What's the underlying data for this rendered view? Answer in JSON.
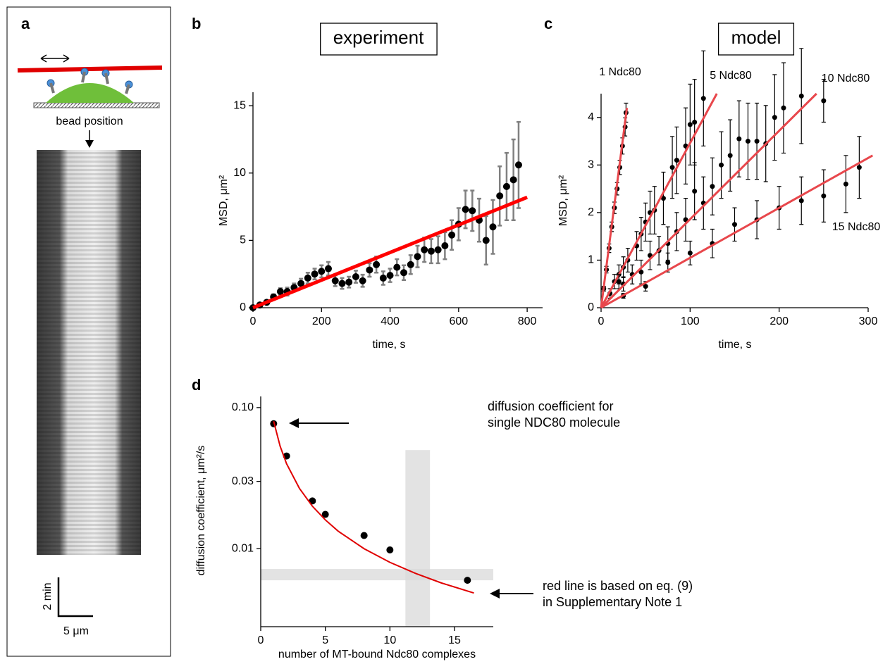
{
  "panel_a": {
    "panel": "a",
    "label": "bead position",
    "time_scale": "2 min",
    "length_scale": "5 μm"
  },
  "chart_data": [
    {
      "type": "scatter",
      "panel": "b",
      "title": "experiment",
      "x_label": "time, s",
      "y_label": "MSD, μm²",
      "xlim": [
        0,
        845
      ],
      "ylim": [
        0,
        16
      ],
      "xticks": [
        0,
        200,
        400,
        600,
        800
      ],
      "yticks": [
        0,
        5,
        10,
        15
      ],
      "series": [
        {
          "type": "scatter",
          "color": "#000000",
          "error_color": "#808080",
          "x": [
            0,
            20,
            40,
            60,
            80,
            100,
            120,
            140,
            160,
            180,
            200,
            220,
            240,
            260,
            280,
            300,
            320,
            340,
            360,
            380,
            400,
            420,
            440,
            460,
            480,
            500,
            520,
            540,
            560,
            580,
            600,
            620,
            640,
            660,
            680,
            700,
            720,
            740,
            760,
            775
          ],
          "values": [
            0,
            0.2,
            0.4,
            0.8,
            1.2,
            1.2,
            1.5,
            1.8,
            2.2,
            2.5,
            2.7,
            2.9,
            2.0,
            1.8,
            1.9,
            2.3,
            2.0,
            2.8,
            3.2,
            2.2,
            2.4,
            3.0,
            2.6,
            3.2,
            3.8,
            4.3,
            4.2,
            4.3,
            4.6,
            5.4,
            6.2,
            7.3,
            7.2,
            6.5,
            5.0,
            6.0,
            8.3,
            9.0,
            9.5,
            10.6
          ],
          "errors": [
            0.05,
            0.1,
            0.15,
            0.2,
            0.25,
            0.3,
            0.3,
            0.35,
            0.4,
            0.4,
            0.45,
            0.5,
            0.4,
            0.4,
            0.4,
            0.45,
            0.45,
            0.5,
            0.6,
            0.5,
            0.5,
            0.6,
            0.55,
            0.7,
            0.8,
            0.9,
            0.9,
            1.0,
            1.0,
            1.1,
            1.2,
            1.4,
            1.5,
            1.6,
            1.8,
            2.0,
            2.2,
            2.5,
            3.0,
            3.2
          ]
        },
        {
          "type": "line",
          "color": "#ff0000",
          "x": [
            0,
            800
          ],
          "values": [
            0,
            8.2
          ]
        }
      ]
    },
    {
      "type": "scatter",
      "panel": "c",
      "title": "model",
      "x_label": "time, s",
      "y_label": "MSD, μm²",
      "xlim": [
        0,
        300
      ],
      "ylim": [
        0,
        4.5
      ],
      "xticks": [
        0,
        100,
        200,
        300
      ],
      "yticks": [
        0,
        1,
        2,
        3,
        4
      ],
      "series": [
        {
          "name": "1 Ndc80",
          "color": "#000000",
          "fit_color": "#e8474c",
          "fit_x": [
            0,
            29
          ],
          "fit_values": [
            0,
            4.2
          ],
          "x": [
            3,
            6,
            9,
            12,
            15,
            18,
            21,
            24,
            27,
            28
          ],
          "values": [
            0.4,
            0.8,
            1.25,
            1.7,
            2.1,
            2.5,
            2.95,
            3.4,
            3.8,
            4.1
          ],
          "errors": [
            0.05,
            0.07,
            0.09,
            0.1,
            0.12,
            0.13,
            0.15,
            0.17,
            0.19,
            0.2
          ]
        },
        {
          "name": "5 Ndc80",
          "color": "#000000",
          "fit_color": "#e8474c",
          "fit_x": [
            0,
            130
          ],
          "fit_values": [
            0,
            4.5
          ],
          "x": [
            10,
            15,
            20,
            25,
            30,
            40,
            45,
            50,
            55,
            60,
            70,
            80,
            85,
            95,
            100,
            105,
            115
          ],
          "values": [
            0.3,
            0.55,
            0.7,
            0.85,
            1.0,
            1.3,
            1.55,
            1.8,
            2.0,
            2.05,
            2.3,
            2.95,
            3.1,
            3.4,
            3.85,
            3.9,
            4.4
          ],
          "errors": [
            0.1,
            0.15,
            0.2,
            0.22,
            0.25,
            0.3,
            0.35,
            0.4,
            0.45,
            0.5,
            0.55,
            0.65,
            0.7,
            0.8,
            0.85,
            0.9,
            1.0
          ]
        },
        {
          "name": "10 Ndc80",
          "color": "#000000",
          "fit_color": "#e8474c",
          "fit_x": [
            0,
            242
          ],
          "fit_values": [
            0,
            4.5
          ],
          "x": [
            20,
            25,
            35,
            45,
            55,
            65,
            75,
            85,
            95,
            105,
            115,
            125,
            135,
            145,
            155,
            165,
            175,
            185,
            195,
            205,
            225,
            250
          ],
          "values": [
            0.55,
            0.5,
            0.7,
            0.75,
            1.1,
            1.2,
            1.35,
            1.6,
            1.85,
            2.45,
            2.2,
            2.55,
            3.0,
            3.2,
            3.55,
            3.5,
            3.5,
            3.45,
            4.0,
            4.2,
            4.45,
            4.35
          ],
          "errors": [
            0.15,
            0.15,
            0.2,
            0.25,
            0.3,
            0.3,
            0.35,
            0.4,
            0.45,
            0.6,
            0.55,
            0.6,
            0.7,
            0.75,
            0.8,
            0.8,
            0.8,
            0.8,
            0.9,
            0.95,
            1.0,
            0.45
          ]
        },
        {
          "name": "15 Ndc80",
          "color": "#000000",
          "fit_color": "#e8474c",
          "fit_x": [
            0,
            305
          ],
          "fit_values": [
            0,
            3.2
          ],
          "x": [
            25,
            50,
            75,
            100,
            125,
            150,
            175,
            200,
            225,
            250,
            275,
            290
          ],
          "values": [
            0.25,
            0.45,
            0.95,
            1.15,
            1.35,
            1.75,
            1.85,
            2.1,
            2.25,
            2.35,
            2.6,
            2.95
          ],
          "errors": [
            0.05,
            0.1,
            0.2,
            0.25,
            0.3,
            0.35,
            0.4,
            0.45,
            0.5,
            0.55,
            0.6,
            0.65
          ]
        }
      ]
    },
    {
      "type": "scatter",
      "panel": "d",
      "x_label": "number of MT-bound Ndc80 complexes",
      "y_label": "diffusion coefficient, μm²/s",
      "log_y": true,
      "xlim": [
        0,
        18
      ],
      "ylim": [
        0.0028,
        0.12
      ],
      "xticks": [
        0,
        5,
        10,
        15
      ],
      "yticks": [
        0.01,
        0.03,
        {
          "value": 0.1,
          "label": "0.10"
        }
      ],
      "shaded_regions": [
        {
          "x": [
            11.2,
            13.1
          ],
          "y": [
            0.0028,
            0.05
          ]
        },
        {
          "x": [
            0,
            18
          ],
          "y": [
            0.00597,
            0.00718
          ]
        }
      ],
      "annotations": [
        {
          "lines": [
            "diffusion coefficient for",
            "single NDC80 molecule"
          ]
        },
        {
          "lines": [
            "red line is based on eq. (9)",
            "in Supplementary Note 1"
          ]
        }
      ],
      "series": [
        {
          "type": "scatter",
          "color": "#000000",
          "x": [
            1,
            2,
            4,
            5,
            8,
            10,
            16
          ],
          "values": [
            0.0769,
            0.0454,
            0.0218,
            0.0175,
            0.0124,
            0.0098,
            0.00597
          ]
        },
        {
          "type": "line",
          "color": "#e00000",
          "x": [
            1,
            1.5,
            2,
            3,
            4,
            5,
            6,
            8,
            10,
            12,
            14,
            16.5
          ],
          "values": [
            0.08,
            0.0533,
            0.04,
            0.0267,
            0.02,
            0.016,
            0.0133,
            0.01,
            0.008,
            0.00667,
            0.00571,
            0.00485
          ]
        }
      ]
    }
  ]
}
